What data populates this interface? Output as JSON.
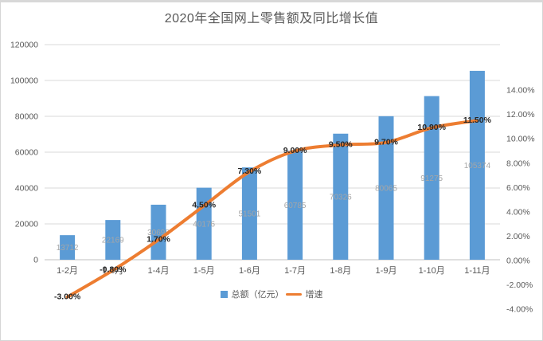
{
  "title": "2020年全国网上零售额及同比增长值",
  "legend": {
    "total_label": "总额（亿元）",
    "growth_label": "增速"
  },
  "colors": {
    "bar": "#5B9BD5",
    "line": "#ED7D31",
    "grid": "#D9D9D9",
    "axis_line": "#C2C2C2",
    "axis_text": "#595959",
    "bar_label": "#A6A6A6",
    "line_label": "#262626"
  },
  "chart_data": {
    "type": "combo",
    "title": "2020年全国网上零售额及同比增长值",
    "categories": [
      "1-2月",
      "1-3月",
      "1-4月",
      "1-5月",
      "1-6月",
      "1-7月",
      "1-8月",
      "1-9月",
      "1-10月",
      "1-11月"
    ],
    "series": [
      {
        "name": "总额（亿元）",
        "type": "bar",
        "axis": "left",
        "values": [
          13712,
          22169,
          30698,
          40176,
          51501,
          60785,
          70326,
          80065,
          91275,
          105374
        ],
        "labels": [
          "13712",
          "22169",
          "30698",
          "40176",
          "51501",
          "60785",
          "70326",
          "80065",
          "91275",
          "105374"
        ]
      },
      {
        "name": "增速",
        "type": "line",
        "axis": "right",
        "smooth": true,
        "values": [
          -3.0,
          -0.8,
          1.7,
          4.5,
          7.3,
          9.0,
          9.5,
          9.7,
          10.9,
          11.5
        ],
        "labels": [
          "-3.00%",
          "-0.80%",
          "1.70%",
          "4.50%",
          "7.30%",
          "9.00%",
          "9.50%",
          "9.70%",
          "10.90%",
          "11.50%"
        ]
      }
    ],
    "left_axis": {
      "min": 0,
      "max": 120000,
      "step": 20000,
      "tick_labels": [
        "0",
        "20000",
        "40000",
        "60000",
        "80000",
        "100000",
        "120000"
      ]
    },
    "right_axis": {
      "min": -4,
      "max": 14,
      "step": 2,
      "tick_labels": [
        "-4.00%",
        "-2.00%",
        "0.00%",
        "2.00%",
        "4.00%",
        "6.00%",
        "8.00%",
        "10.00%",
        "12.00%",
        "14.00%"
      ]
    },
    "grid": true,
    "legend_position": "bottom"
  }
}
